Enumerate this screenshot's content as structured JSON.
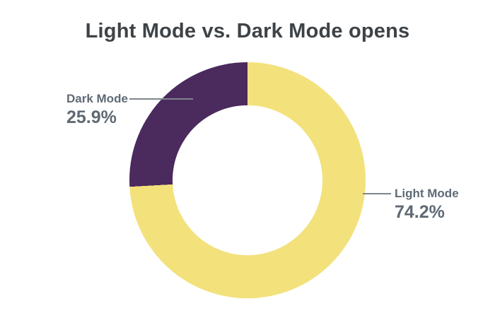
{
  "colors": {
    "background": "#FFFFFF",
    "title_text": "#3E4347",
    "label_text": "#5F6A75",
    "callout_line": "#7E868D",
    "light_mode_slice": "#F3E17C",
    "dark_mode_slice": "#4B2A5E"
  },
  "chart_data": {
    "type": "pie",
    "subtype": "donut",
    "title": "Light Mode vs. Dark Mode opens",
    "labels": [
      "Light Mode",
      "Dark Mode"
    ],
    "values": [
      74.2,
      25.9
    ],
    "value_labels": [
      "74.2%",
      "25.9%"
    ],
    "colors": [
      "#F3E17C",
      "#4B2A5E"
    ],
    "start_angle_deg": 0,
    "direction": "clockwise",
    "inner_radius_ratio": 0.64,
    "legend": "none",
    "annotations": [
      {
        "label": "Dark Mode",
        "value_label": "25.9%",
        "side": "left"
      },
      {
        "label": "Light Mode",
        "value_label": "74.2%",
        "side": "right"
      }
    ]
  }
}
